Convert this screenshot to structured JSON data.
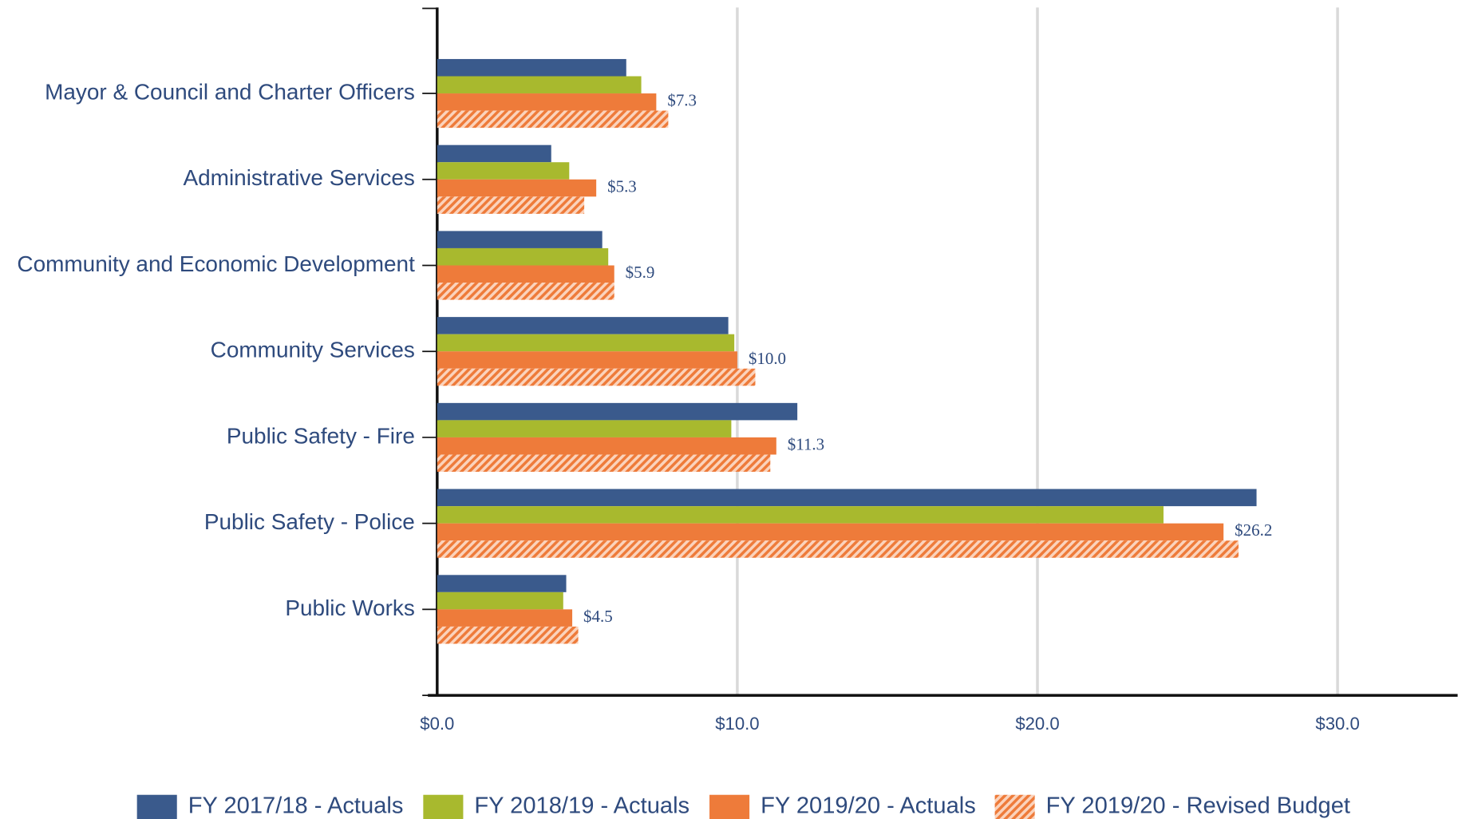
{
  "chart_data": {
    "type": "hbar",
    "categories": [
      "Mayor & Council and Charter Officers",
      "Administrative Services",
      "Community and Economic Development",
      "Community Services",
      "Public Safety - Fire",
      "Public Safety - Police",
      "Public Works"
    ],
    "series": [
      {
        "name": "FY 2017/18 - Actuals",
        "color": "#3a5a8c",
        "values": [
          6.3,
          3.8,
          5.5,
          9.7,
          12.0,
          27.3,
          4.3
        ]
      },
      {
        "name": "FY 2018/19 - Actuals",
        "color": "#a8b92e",
        "values": [
          6.8,
          4.4,
          5.7,
          9.9,
          9.8,
          24.2,
          4.2
        ]
      },
      {
        "name": "FY 2019/20 - Actuals",
        "color": "#ee7b3a",
        "values": [
          7.3,
          5.3,
          5.9,
          10.0,
          11.3,
          26.2,
          4.5
        ],
        "value_labels": [
          "$7.3",
          "$5.3",
          "$5.9",
          "$10.0",
          "$11.3",
          "$26.2",
          "$4.5"
        ]
      },
      {
        "name": "FY 2019/20 - Revised Budget",
        "color": "#ee7b3a",
        "hatch": true,
        "values": [
          7.7,
          4.9,
          5.9,
          10.6,
          11.1,
          26.7,
          4.7
        ]
      }
    ],
    "xlim": [
      0,
      34
    ],
    "xticks": [
      {
        "value": 0,
        "label": "$0.0"
      },
      {
        "value": 10,
        "label": "$10.0"
      },
      {
        "value": 20,
        "label": "$20.0"
      },
      {
        "value": 30,
        "label": "$30.0"
      }
    ],
    "grid": true,
    "legend": "bottom"
  }
}
